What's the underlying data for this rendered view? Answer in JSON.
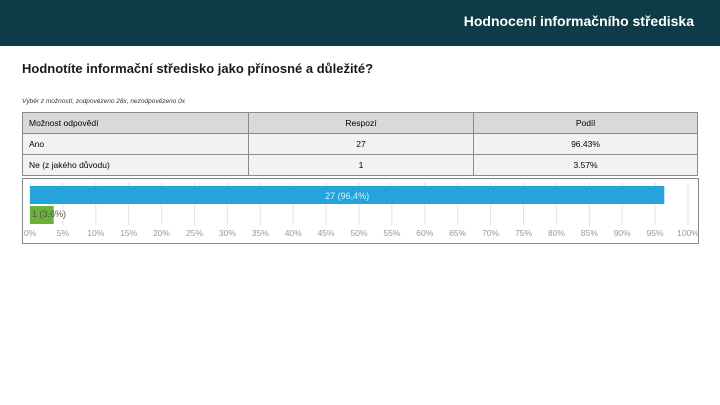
{
  "header": {
    "title": "Hodnocení informačního střediska"
  },
  "question": {
    "title": "Hodnotíte informační středisko jako přínosné a důležité?"
  },
  "meta": {
    "text": "Výběr z možností, zodpovězeno 28x, nezodpovězeno 0x"
  },
  "table": {
    "headers": [
      "Možnost odpovědí",
      "Respozí",
      "Podíl"
    ],
    "rows": [
      [
        "Ano",
        "27",
        "96.43%"
      ],
      [
        "Ne (z jakého důvodu)",
        "1",
        "3.57%"
      ]
    ]
  },
  "chart_data": {
    "type": "bar",
    "orientation": "horizontal",
    "categories": [
      "Ano",
      "Ne (z jakého důvodu)"
    ],
    "values": [
      96.4,
      3.6
    ],
    "data_labels": [
      "27 (96,4%)",
      "1 (3,6%)"
    ],
    "colors": [
      "#25a4dc",
      "#6bb23a"
    ],
    "xlim": [
      0,
      100
    ],
    "x_ticks": [
      "0%",
      "5%",
      "10%",
      "15%",
      "20%",
      "25%",
      "30%",
      "35%",
      "40%",
      "45%",
      "50%",
      "55%",
      "60%",
      "65%",
      "70%",
      "75%",
      "80%",
      "85%",
      "90%",
      "95%",
      "100%"
    ],
    "grid": true
  }
}
